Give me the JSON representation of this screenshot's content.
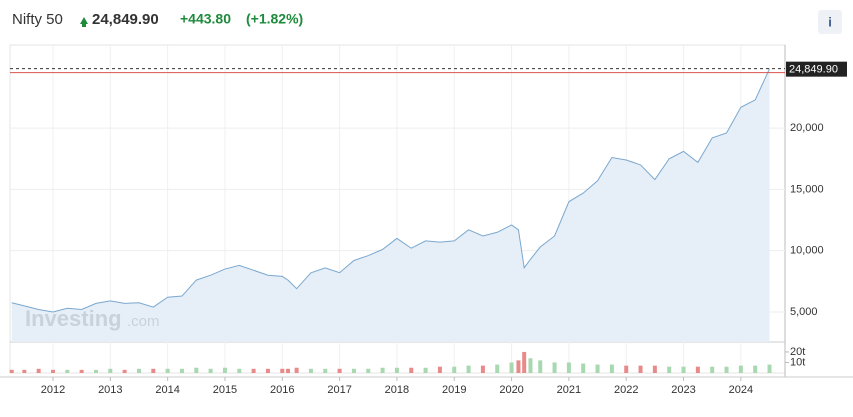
{
  "header": {
    "title": "Nifty 50",
    "change": "+443.80",
    "change_pct": "(+1.82%)",
    "info": "i"
  },
  "watermark": {
    "brand": "Investing",
    "suffix": ".com"
  },
  "chart_data": [
    {
      "type": "area",
      "color": "#7aa8cf",
      "fill": "#e6eef7",
      "grid": true,
      "x": [
        2011.28,
        2011.5,
        2011.75,
        2012.0,
        2012.25,
        2012.5,
        2012.75,
        2013.0,
        2013.25,
        2013.5,
        2013.75,
        2014.0,
        2014.25,
        2014.5,
        2014.75,
        2015.0,
        2015.25,
        2015.5,
        2015.75,
        2016.0,
        2016.1,
        2016.25,
        2016.5,
        2016.75,
        2017.0,
        2017.25,
        2017.5,
        2017.75,
        2018.0,
        2018.25,
        2018.5,
        2018.75,
        2019.0,
        2019.25,
        2019.5,
        2019.75,
        2020.0,
        2020.12,
        2020.22,
        2020.33,
        2020.5,
        2020.75,
        2021.0,
        2021.25,
        2021.5,
        2021.75,
        2022.0,
        2022.25,
        2022.5,
        2022.75,
        2023.0,
        2023.25,
        2023.5,
        2023.75,
        2024.0,
        2024.25,
        2024.5
      ],
      "values": [
        5750,
        5500,
        5200,
        5000,
        5300,
        5200,
        5700,
        5900,
        5700,
        5750,
        5400,
        6200,
        6300,
        7600,
        8000,
        8500,
        8800,
        8400,
        8000,
        7900,
        7600,
        6900,
        8200,
        8600,
        8200,
        9200,
        9600,
        10100,
        11000,
        10200,
        10800,
        10700,
        10800,
        11700,
        11200,
        11500,
        12100,
        11700,
        8600,
        9300,
        10300,
        11200,
        14000,
        14700,
        15700,
        17600,
        17400,
        17000,
        15800,
        17500,
        18100,
        17200,
        19200,
        19600,
        21700,
        22300,
        24849.9
      ],
      "xlim": [
        2011.25,
        2024.77
      ],
      "xticks": [
        2012,
        2013,
        2014,
        2015,
        2016,
        2017,
        2018,
        2019,
        2020,
        2021,
        2022,
        2023,
        2024
      ],
      "ylim": [
        2550,
        26780
      ],
      "yticks": [
        {
          "value": 5000,
          "label": "5,000"
        },
        {
          "value": 10000,
          "label": "10,000"
        },
        {
          "value": 15000,
          "label": "15,000"
        },
        {
          "value": 20000,
          "label": "20,000"
        }
      ],
      "price_line": {
        "value": 24849.9,
        "label": "24,849.90",
        "color": "#d9534f"
      }
    },
    {
      "type": "bar",
      "x": [
        2011.28,
        2011.5,
        2011.75,
        2012.0,
        2012.25,
        2012.5,
        2012.75,
        2013.0,
        2013.25,
        2013.5,
        2013.75,
        2014.0,
        2014.25,
        2014.5,
        2014.75,
        2015.0,
        2015.25,
        2015.5,
        2015.75,
        2016.0,
        2016.1,
        2016.25,
        2016.5,
        2016.75,
        2017.0,
        2017.25,
        2017.5,
        2017.75,
        2018.0,
        2018.25,
        2018.5,
        2018.75,
        2019.0,
        2019.25,
        2019.5,
        2019.75,
        2020.0,
        2020.12,
        2020.22,
        2020.33,
        2020.5,
        2020.75,
        2021.0,
        2021.25,
        2021.5,
        2021.75,
        2022.0,
        2022.25,
        2022.5,
        2022.75,
        2023.0,
        2023.25,
        2023.5,
        2023.75,
        2024.0,
        2024.25,
        2024.5
      ],
      "values": [
        3,
        3,
        4,
        3,
        3,
        3,
        3,
        4,
        3,
        4,
        4,
        4,
        4,
        5,
        4,
        5,
        4,
        4,
        4,
        4,
        4,
        5,
        4,
        4,
        4,
        4,
        4,
        5,
        5,
        5,
        5,
        6,
        6,
        7,
        7,
        8,
        10,
        12,
        20,
        14,
        12,
        10,
        10,
        9,
        8,
        8,
        7,
        7,
        7,
        6,
        6,
        6,
        6,
        6,
        7,
        7,
        8
      ],
      "colors": [
        "#e88a8a",
        "#e88a8a",
        "#e88a8a",
        "#e88a8a",
        "#a8d8b0",
        "#e88a8a",
        "#a8d8b0",
        "#a8d8b0",
        "#e88a8a",
        "#a8d8b0",
        "#e88a8a",
        "#a8d8b0",
        "#a8d8b0",
        "#a8d8b0",
        "#a8d8b0",
        "#a8d8b0",
        "#a8d8b0",
        "#e88a8a",
        "#e88a8a",
        "#e88a8a",
        "#e88a8a",
        "#e88a8a",
        "#a8d8b0",
        "#a8d8b0",
        "#e88a8a",
        "#a8d8b0",
        "#a8d8b0",
        "#a8d8b0",
        "#a8d8b0",
        "#e88a8a",
        "#a8d8b0",
        "#e88a8a",
        "#a8d8b0",
        "#a8d8b0",
        "#e88a8a",
        "#a8d8b0",
        "#a8d8b0",
        "#e88a8a",
        "#e88a8a",
        "#a8d8b0",
        "#a8d8b0",
        "#a8d8b0",
        "#a8d8b0",
        "#a8d8b0",
        "#a8d8b0",
        "#a8d8b0",
        "#e88a8a",
        "#e88a8a",
        "#e88a8a",
        "#a8d8b0",
        "#a8d8b0",
        "#e88a8a",
        "#a8d8b0",
        "#a8d8b0",
        "#a8d8b0",
        "#a8d8b0",
        "#a8d8b0"
      ],
      "ylim": [
        0,
        28.5
      ],
      "yticks": [
        {
          "value": 10,
          "label": "10t"
        },
        {
          "value": 20,
          "label": "20t"
        }
      ]
    }
  ]
}
